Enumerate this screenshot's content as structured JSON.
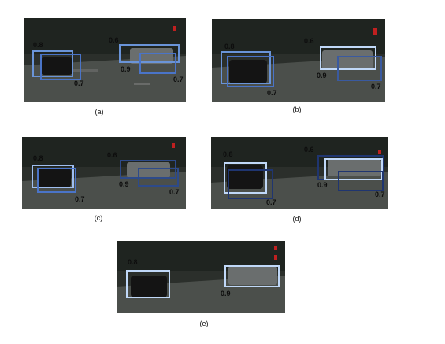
{
  "figure": {
    "panels": [
      {
        "id": "a",
        "label": "(a)",
        "scores": [
          "0.8",
          "0.6",
          "0.9",
          "0.7"
        ]
      },
      {
        "id": "b",
        "label": "(b)",
        "scores": [
          "0.8",
          "0.6",
          "0.9",
          "0.7"
        ]
      },
      {
        "id": "c",
        "label": "(c)",
        "scores": [
          "0.8",
          "0.6",
          "0.9",
          "0.7"
        ]
      },
      {
        "id": "d",
        "label": "(d)",
        "scores": [
          "0.8",
          "0.6",
          "0.9",
          "0.7"
        ]
      },
      {
        "id": "e",
        "label": "(e)",
        "scores": [
          "0.8",
          "0.9"
        ]
      }
    ],
    "colors": {
      "box_bright": "#a8c8f0",
      "box_dark": "#3a5aa0",
      "green_mark": "#33cc33",
      "scene_dark": "#2a2e2a",
      "road": "#4a4e4a"
    }
  }
}
